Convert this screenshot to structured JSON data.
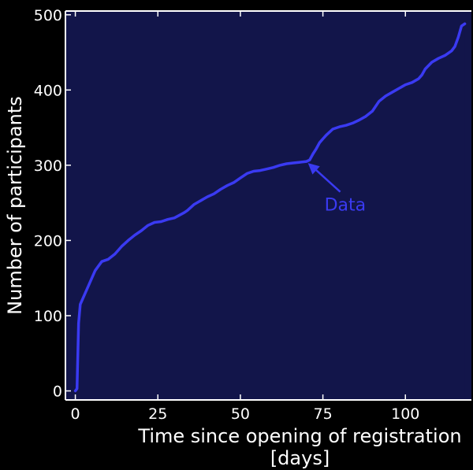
{
  "colors": {
    "background": "#000000",
    "axes": "#ffffff",
    "plot_fill": "#12154a",
    "line": "#3a3af2",
    "annotation": "#3a3af2"
  },
  "chart_data": {
    "type": "area",
    "title": "",
    "xlabel": "Time since opening of registration\n[days]",
    "ylabel": "Number of participants",
    "xlim": [
      -3,
      120
    ],
    "ylim": [
      -12,
      505
    ],
    "xticks": [
      0,
      25,
      50,
      75,
      100
    ],
    "yticks": [
      0,
      100,
      200,
      300,
      400,
      500
    ],
    "grid": false,
    "legend": "none",
    "series": [
      {
        "x": [
          0,
          0.5,
          1,
          1.5,
          2,
          3,
          4,
          5,
          6,
          8,
          10,
          12,
          14,
          16,
          18,
          20,
          22,
          24,
          26,
          28,
          30,
          33,
          34,
          36,
          38,
          40,
          42,
          44,
          46,
          48,
          50,
          52,
          54,
          56,
          58,
          60,
          62,
          64,
          66,
          68,
          70,
          71,
          72,
          73,
          74,
          75,
          76,
          78,
          80,
          82,
          84,
          86,
          88,
          90,
          92,
          94,
          96,
          98,
          100,
          102,
          104,
          105,
          106,
          108,
          110,
          112,
          114,
          115,
          116,
          117,
          118
        ],
        "y": [
          0,
          3,
          90,
          115,
          120,
          130,
          140,
          150,
          160,
          172,
          175,
          182,
          192,
          200,
          207,
          213,
          220,
          224,
          225,
          228,
          230,
          237,
          240,
          248,
          253,
          258,
          262,
          268,
          273,
          277,
          283,
          289,
          292,
          293,
          295,
          297,
          300,
          302,
          303,
          304,
          305,
          307,
          315,
          322,
          330,
          335,
          340,
          348,
          351,
          353,
          356,
          360,
          365,
          372,
          385,
          392,
          397,
          402,
          407,
          410,
          415,
          420,
          428,
          437,
          442,
          446,
          452,
          458,
          470,
          485,
          488
        ]
      }
    ],
    "annotations": [
      {
        "text": "Data",
        "xy": [
          70,
          305
        ],
        "xytext": [
          75,
          250
        ]
      }
    ]
  }
}
